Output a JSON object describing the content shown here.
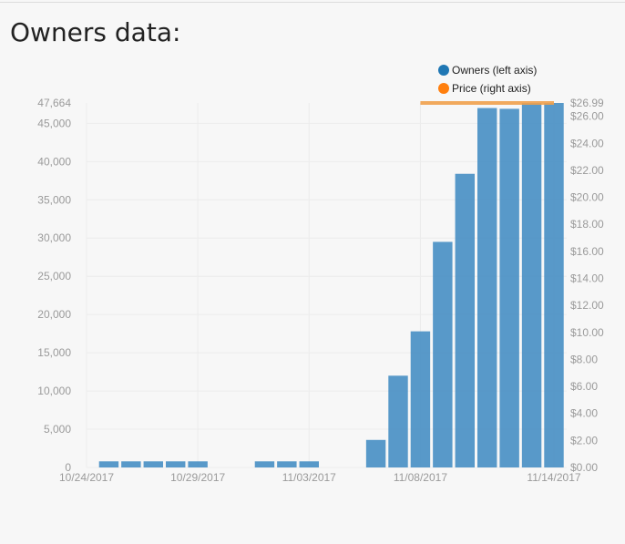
{
  "page": {
    "title": "Owners data:"
  },
  "colors": {
    "owners": "#4a90c4",
    "price": "#f0a04b",
    "grid": "#ececec",
    "tick": "#9a9a9a"
  },
  "chart_data": {
    "type": "bar",
    "legend": {
      "placement": "top-right",
      "entries": [
        {
          "label": "Owners (left axis)",
          "color": "#1f77b4"
        },
        {
          "label": "Price (right axis)",
          "color": "#ff7f0e"
        }
      ]
    },
    "x_ticks": [
      "10/24/2017",
      "10/29/2017",
      "11/03/2017",
      "11/08/2017",
      "11/14/2017"
    ],
    "y_left": {
      "max_label": "47,664",
      "ticks": [
        "0",
        "5,000",
        "10,000",
        "15,000",
        "20,000",
        "25,000",
        "30,000",
        "35,000",
        "40,000",
        "45,000"
      ],
      "ylim": [
        0,
        47664
      ]
    },
    "y_right": {
      "max_label": "$26.99",
      "ticks": [
        "$0.00",
        "$2.00",
        "$4.00",
        "$6.00",
        "$8.00",
        "$10.00",
        "$12.00",
        "$14.00",
        "$16.00",
        "$18.00",
        "$20.00",
        "$22.00",
        "$24.00",
        "$26.00"
      ],
      "ylim": [
        0,
        26.99
      ]
    },
    "owners": {
      "dates": [
        "10/25/2017",
        "10/26/2017",
        "10/27/2017",
        "10/28/2017",
        "10/29/2017",
        "11/01/2017",
        "11/02/2017",
        "11/03/2017",
        "11/06/2017",
        "11/07/2017",
        "11/08/2017",
        "11/09/2017",
        "11/10/2017",
        "11/11/2017",
        "11/12/2017",
        "11/13/2017",
        "11/14/2017"
      ],
      "values": [
        800,
        800,
        800,
        800,
        800,
        800,
        800,
        800,
        3600,
        12000,
        17800,
        29500,
        38400,
        47000,
        46900,
        47664,
        47664
      ]
    },
    "price": {
      "dates": [
        "11/08/2017",
        "11/14/2017"
      ],
      "values": [
        26.99,
        26.99
      ]
    }
  }
}
